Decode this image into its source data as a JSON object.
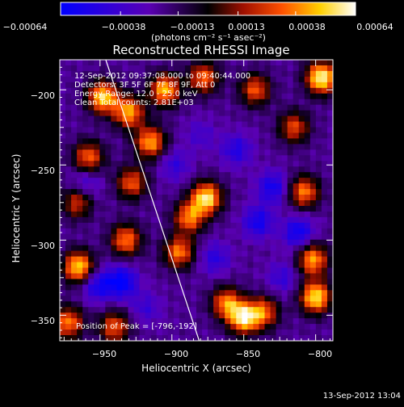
{
  "chart_data": {
    "type": "heatmap",
    "title": "Reconstructed RHESSI Image",
    "xlabel": "Heliocentric X (arcsec)",
    "ylabel": "Heliocentric Y (arcsec)",
    "xlim": [
      -978,
      -788
    ],
    "ylim": [
      -367,
      -180
    ],
    "xticks": [
      -950,
      -900,
      -850,
      -800
    ],
    "xtick_labels": [
      "−950",
      "−900",
      "−850",
      "−800"
    ],
    "yticks": [
      -350,
      -300,
      -250,
      -200
    ],
    "ytick_labels": [
      "−350",
      "−300",
      "−250",
      "−200"
    ],
    "colorbar": {
      "range": [
        -0.00064,
        0.00064
      ],
      "ticks": [
        -0.00064,
        -0.00038,
        -0.00013,
        0.00013,
        0.00038,
        0.00064
      ],
      "tick_labels": [
        "−0.00064",
        "−0.00038",
        "−0.00013",
        "0.00013",
        "0.00038",
        "0.00064"
      ],
      "unit_label": "(photons cm⁻² s⁻¹ asec⁻²)",
      "colors": [
        "#0000ff",
        "#5a00b4",
        "#000000",
        "#a01000",
        "#ff5000",
        "#ffd000",
        "#ffffff"
      ]
    },
    "annotations": [
      "12-Sep-2012 09:37:08.000 to 09:40:44.000",
      "Detectors: 3F 5F 6F 7F 8F 9F, Att 0",
      "Energy Range: 12.0 - 25.0 keV",
      "Clean     Total counts: 2.81E+03"
    ],
    "peak_label": "Position of Peak = [-796,-192]",
    "peak": [
      -796,
      -192
    ],
    "limb_line": [
      [
        -946,
        -180
      ],
      [
        -881,
        -367
      ]
    ],
    "hotspots": [
      {
        "x": -796,
        "y": -192,
        "v": 1.0
      },
      {
        "x": -948,
        "y": -205,
        "v": 0.85
      },
      {
        "x": -930,
        "y": -215,
        "v": 0.7
      },
      {
        "x": -905,
        "y": -200,
        "v": 0.75
      },
      {
        "x": -878,
        "y": -192,
        "v": 0.55
      },
      {
        "x": -842,
        "y": -200,
        "v": 0.5
      },
      {
        "x": -915,
        "y": -235,
        "v": 0.7
      },
      {
        "x": -958,
        "y": -245,
        "v": 0.55
      },
      {
        "x": -876,
        "y": -272,
        "v": 0.9
      },
      {
        "x": -888,
        "y": -285,
        "v": 0.6
      },
      {
        "x": -928,
        "y": -262,
        "v": 0.5
      },
      {
        "x": -965,
        "y": -318,
        "v": 0.85
      },
      {
        "x": -932,
        "y": -300,
        "v": 0.6
      },
      {
        "x": -895,
        "y": -308,
        "v": 0.6
      },
      {
        "x": -808,
        "y": -268,
        "v": 0.6
      },
      {
        "x": -802,
        "y": -313,
        "v": 0.7
      },
      {
        "x": -800,
        "y": -338,
        "v": 0.9
      },
      {
        "x": -836,
        "y": -348,
        "v": 0.5
      },
      {
        "x": -862,
        "y": -342,
        "v": 0.6
      },
      {
        "x": -850,
        "y": -352,
        "v": 0.85
      },
      {
        "x": -972,
        "y": -355,
        "v": 0.6
      },
      {
        "x": -940,
        "y": -358,
        "v": 0.5
      },
      {
        "x": -815,
        "y": -225,
        "v": 0.45
      },
      {
        "x": -966,
        "y": -275,
        "v": 0.4
      }
    ],
    "coldspots": [
      {
        "x": -935,
        "y": -328,
        "v": -0.85
      },
      {
        "x": -952,
        "y": -330,
        "v": -0.7
      },
      {
        "x": -840,
        "y": -288,
        "v": -0.7
      },
      {
        "x": -830,
        "y": -265,
        "v": -0.7
      },
      {
        "x": -812,
        "y": -295,
        "v": -0.75
      },
      {
        "x": -855,
        "y": -240,
        "v": -0.6
      },
      {
        "x": -898,
        "y": -250,
        "v": -0.5
      },
      {
        "x": -960,
        "y": -262,
        "v": -0.5
      },
      {
        "x": -870,
        "y": -312,
        "v": -0.55
      },
      {
        "x": -918,
        "y": -345,
        "v": -0.45
      },
      {
        "x": -823,
        "y": -325,
        "v": -0.5
      },
      {
        "x": -880,
        "y": -230,
        "v": -0.4
      }
    ]
  },
  "footer": {
    "timestamp": "13-Sep-2012 13:04"
  }
}
